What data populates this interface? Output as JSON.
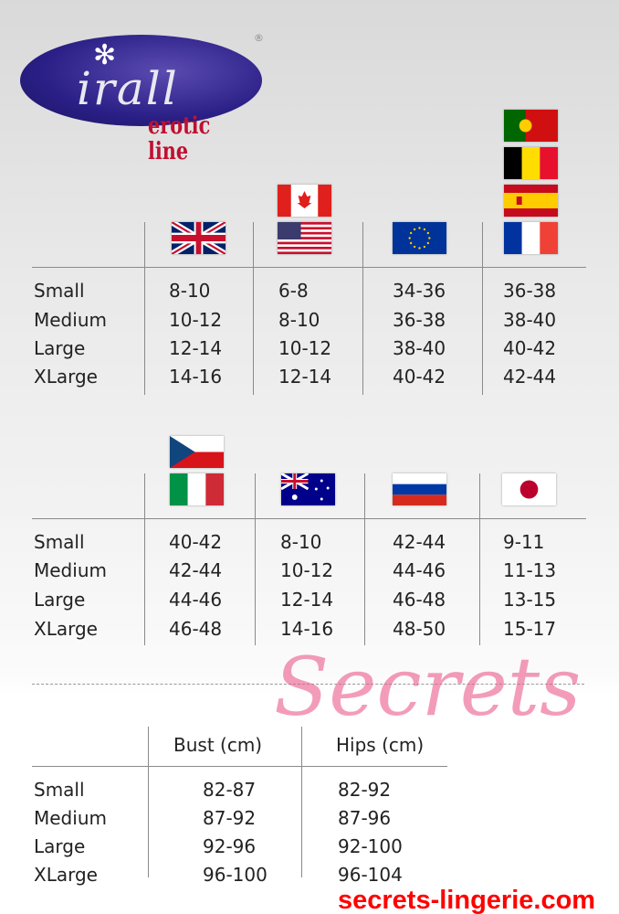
{
  "logo": {
    "brand": "irall",
    "tagline": "erotic line",
    "mark": "®"
  },
  "table1": {
    "rows": [
      "Small",
      "Medium",
      "Large",
      "XLarge"
    ],
    "columns": [
      {
        "flags": [
          "uk-flag"
        ],
        "values": [
          "8-10",
          "10-12",
          "12-14",
          "14-16"
        ]
      },
      {
        "flags": [
          "canada-flag",
          "usa-flag"
        ],
        "values": [
          "6-8",
          "8-10",
          "10-12",
          "12-14"
        ]
      },
      {
        "flags": [
          "eu-flag"
        ],
        "values": [
          "34-36",
          "36-38",
          "38-40",
          "40-42"
        ]
      },
      {
        "flags": [
          "portugal-flag",
          "belgium-flag",
          "spain-flag",
          "france-flag"
        ],
        "values": [
          "36-38",
          "38-40",
          "40-42",
          "42-44"
        ]
      }
    ]
  },
  "table2": {
    "rows": [
      "Small",
      "Medium",
      "Large",
      "XLarge"
    ],
    "columns": [
      {
        "flags": [
          "czech-flag",
          "italy-flag"
        ],
        "values": [
          "40-42",
          "42-44",
          "44-46",
          "46-48"
        ]
      },
      {
        "flags": [
          "australia-flag"
        ],
        "values": [
          "8-10",
          "10-12",
          "12-14",
          "14-16"
        ]
      },
      {
        "flags": [
          "russia-flag"
        ],
        "values": [
          "42-44",
          "44-46",
          "46-48",
          "48-50"
        ]
      },
      {
        "flags": [
          "japan-flag"
        ],
        "values": [
          "9-11",
          "11-13",
          "13-15",
          "15-17"
        ]
      }
    ]
  },
  "table3": {
    "headers": [
      "Bust (cm)",
      "Hips (cm)"
    ],
    "rows": [
      "Small",
      "Medium",
      "Large",
      "XLarge"
    ],
    "bust": [
      "82-87",
      "87-92",
      "92-96",
      "96-100"
    ],
    "hips": [
      "82-92",
      "87-96",
      "92-100",
      "96-104"
    ]
  },
  "watermark": {
    "script": "Secrets",
    "url": "secrets-lingerie.com"
  }
}
